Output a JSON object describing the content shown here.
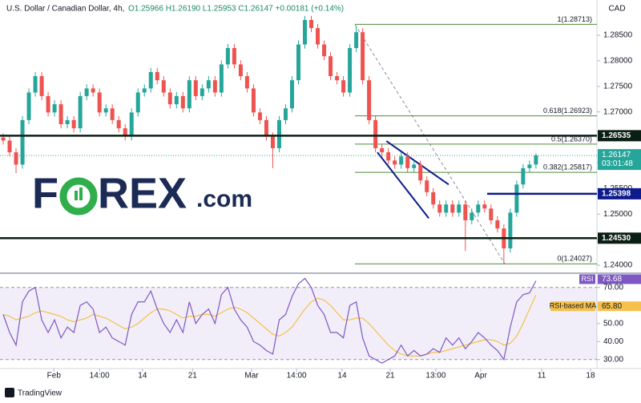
{
  "header": {
    "symbol": "U.S. Dollar / Canadian Dollar, 4h,",
    "ohlc": "O1.25966 H1.26190 L1.25953 C1.26147 +0.00181 (+0.14%)",
    "currency": "CAD"
  },
  "watermark": {
    "f": "F",
    "rex": "REX",
    "com": ".com"
  },
  "footer": "TradingView",
  "chart_data": [
    {
      "type": "candlestick",
      "up_color": "#26a69a",
      "down_color": "#ef5350",
      "open": [
        1.265,
        1.2644,
        1.2621,
        1.2597,
        1.2684,
        1.2738,
        1.277,
        1.2731,
        1.2699,
        1.2715,
        1.2676,
        1.2684,
        1.2668,
        1.2731,
        1.2746,
        1.2738,
        1.2699,
        1.2707,
        1.2684,
        1.2668,
        1.2652,
        1.2699,
        1.2738,
        1.2746,
        1.2778,
        1.2762,
        1.2738,
        1.2715,
        1.2731,
        1.2707,
        1.2762,
        1.2731,
        1.2746,
        1.2762,
        1.2738,
        1.2793,
        1.2825,
        1.2793,
        1.277,
        1.2746,
        1.2699,
        1.2684,
        1.2652,
        1.2629,
        1.2684,
        1.2707,
        1.2762,
        1.2832,
        1.288,
        1.2864,
        1.2832,
        1.2809,
        1.277,
        1.2762,
        1.2738,
        1.2825,
        1.2856,
        1.2762,
        1.2684,
        1.2629,
        1.2621,
        1.2605,
        1.2597,
        1.2613,
        1.259,
        1.2597,
        1.2566,
        1.2543,
        1.2519,
        1.2503,
        1.2519,
        1.2503,
        1.2519,
        1.2488,
        1.2503,
        1.2519,
        1.2511,
        1.2488,
        1.2472,
        1.2433,
        1.2503,
        1.2558,
        1.259,
        1.2597
      ],
      "high": [
        1.2658,
        1.2652,
        1.2629,
        1.2692,
        1.2746,
        1.2778,
        1.2778,
        1.2739,
        1.2723,
        1.2723,
        1.2692,
        1.2692,
        1.2739,
        1.2754,
        1.2754,
        1.2746,
        1.2715,
        1.2715,
        1.2692,
        1.2676,
        1.2707,
        1.2746,
        1.2754,
        1.2786,
        1.2786,
        1.277,
        1.2746,
        1.2739,
        1.2739,
        1.277,
        1.277,
        1.2754,
        1.277,
        1.277,
        1.2801,
        1.2833,
        1.2833,
        1.2801,
        1.2778,
        1.2754,
        1.2707,
        1.2692,
        1.266,
        1.2692,
        1.2715,
        1.277,
        1.284,
        1.2888,
        1.2888,
        1.2872,
        1.284,
        1.2817,
        1.2778,
        1.277,
        1.2833,
        1.2868,
        1.2864,
        1.277,
        1.2692,
        1.2637,
        1.2629,
        1.2613,
        1.2621,
        1.2621,
        1.2605,
        1.2605,
        1.2574,
        1.2551,
        1.2527,
        1.2527,
        1.2527,
        1.2527,
        1.2527,
        1.2511,
        1.2527,
        1.2527,
        1.2519,
        1.2496,
        1.248,
        1.2511,
        1.2566,
        1.2598,
        1.2605,
        1.2619
      ],
      "low": [
        1.2636,
        1.2613,
        1.258,
        1.2589,
        1.2676,
        1.273,
        1.2723,
        1.2691,
        1.2691,
        1.2668,
        1.2668,
        1.266,
        1.266,
        1.2723,
        1.273,
        1.2691,
        1.2691,
        1.2676,
        1.266,
        1.2644,
        1.2644,
        1.2691,
        1.273,
        1.2738,
        1.2754,
        1.273,
        1.2707,
        1.2707,
        1.2699,
        1.2699,
        1.2723,
        1.2723,
        1.2738,
        1.273,
        1.273,
        1.2785,
        1.2785,
        1.2762,
        1.2738,
        1.2691,
        1.2676,
        1.2644,
        1.259,
        1.2621,
        1.2676,
        1.2699,
        1.2754,
        1.2824,
        1.2856,
        1.2824,
        1.2801,
        1.2762,
        1.2754,
        1.273,
        1.273,
        1.2817,
        1.2754,
        1.2676,
        1.2621,
        1.2613,
        1.2597,
        1.2589,
        1.2589,
        1.2582,
        1.2582,
        1.2558,
        1.2535,
        1.2511,
        1.2495,
        1.2495,
        1.2495,
        1.2495,
        1.2428,
        1.248,
        1.2495,
        1.2503,
        1.248,
        1.2464,
        1.2402,
        1.2425,
        1.2495,
        1.255,
        1.2582,
        1.2589
      ],
      "close": [
        1.2644,
        1.2621,
        1.2597,
        1.2684,
        1.2738,
        1.277,
        1.2731,
        1.2699,
        1.2715,
        1.2676,
        1.2684,
        1.2668,
        1.2731,
        1.2746,
        1.2738,
        1.2699,
        1.2707,
        1.2684,
        1.2668,
        1.2652,
        1.2699,
        1.2738,
        1.2746,
        1.2778,
        1.2762,
        1.2738,
        1.2715,
        1.2731,
        1.2707,
        1.2762,
        1.2731,
        1.2746,
        1.2762,
        1.2738,
        1.2793,
        1.2825,
        1.2793,
        1.277,
        1.2746,
        1.2699,
        1.2684,
        1.2652,
        1.2629,
        1.2684,
        1.2707,
        1.2762,
        1.2832,
        1.288,
        1.2864,
        1.2832,
        1.2809,
        1.277,
        1.2762,
        1.2738,
        1.2825,
        1.2856,
        1.2762,
        1.2684,
        1.2629,
        1.2621,
        1.2605,
        1.2597,
        1.2613,
        1.259,
        1.2597,
        1.2566,
        1.2543,
        1.2519,
        1.2503,
        1.2519,
        1.2503,
        1.2519,
        1.2488,
        1.2503,
        1.2519,
        1.2511,
        1.2488,
        1.2472,
        1.2433,
        1.2503,
        1.2558,
        1.259,
        1.2597,
        1.2615
      ],
      "xlim": [
        -0.5,
        92.5
      ],
      "xticks": [
        {
          "value": 7.9,
          "label": "Feb"
        },
        {
          "value": 15,
          "label": "14:00"
        },
        {
          "value": 21.7,
          "label": "14"
        },
        {
          "value": 29.5,
          "label": "21"
        },
        {
          "value": 38.7,
          "label": "Mar"
        },
        {
          "value": 45.7,
          "label": "14:00"
        },
        {
          "value": 52.8,
          "label": "14"
        },
        {
          "value": 60.3,
          "label": "21"
        },
        {
          "value": 67.4,
          "label": "13:00"
        },
        {
          "value": 74.4,
          "label": "Apr"
        },
        {
          "value": 83.9,
          "label": "11"
        },
        {
          "value": 91.5,
          "label": "18"
        }
      ],
      "ylim": [
        1.2386,
        1.2919
      ],
      "yticks": [
        {
          "value": 1.24,
          "label": "1.24000"
        },
        {
          "value": 1.245,
          "label": "1.24500"
        },
        {
          "value": 1.25,
          "label": "1.25000"
        },
        {
          "value": 1.255,
          "label": "1.25500"
        },
        {
          "value": 1.26,
          "label": "1.26000"
        },
        {
          "value": 1.265,
          "label": "1.26500"
        },
        {
          "value": 1.27,
          "label": "1.27000"
        },
        {
          "value": 1.275,
          "label": "1.27500"
        },
        {
          "value": 1.28,
          "label": "1.28000"
        },
        {
          "value": 1.285,
          "label": "1.28500"
        }
      ],
      "levels": [
        {
          "value": 1.26535,
          "label": "1.26535",
          "color": "#0b1f14",
          "start": -0.5
        },
        {
          "value": 1.25398,
          "label": "1.25398",
          "color": "#0d1b8c",
          "start": 75.4
        },
        {
          "value": 1.2453,
          "label": "1.24530",
          "color": "#0b1f14",
          "start": -0.5
        }
      ],
      "fib": {
        "color": "#4e8a3a",
        "start": 54.8,
        "levels": [
          {
            "value": 1.28713,
            "label": "1(1.28713)"
          },
          {
            "value": 1.26923,
            "label": "0.618(1.26923)"
          },
          {
            "value": 1.2637,
            "label": "0.5(1.26370)"
          },
          {
            "value": 1.25817,
            "label": "0.382(1.25817)"
          },
          {
            "value": 1.24027,
            "label": "0(1.24027)"
          }
        ]
      },
      "trendlines": [
        {
          "color": "#0d1b8c",
          "dashed": false,
          "points": [
            [
              59.7,
              1.2643
            ],
            [
              69.4,
              1.2558
            ]
          ]
        },
        {
          "color": "#0d1b8c",
          "dashed": false,
          "points": [
            [
              58.3,
              1.2621
            ],
            [
              66.3,
              1.2492
            ]
          ]
        },
        {
          "color": "#8a8f99",
          "dashed": true,
          "points": [
            [
              54.8,
              1.2871
            ],
            [
              78.2,
              1.2402
            ]
          ]
        }
      ],
      "last_price": {
        "value": 1.26147,
        "label": "1.26147",
        "color": "#26a69a"
      },
      "countdown": "03:01:48"
    },
    {
      "type": "line",
      "ylim": [
        25,
        77
      ],
      "yticks": [
        {
          "value": 70,
          "label": "70.00"
        },
        {
          "value": 60,
          "label": "60.00"
        },
        {
          "value": 50,
          "label": "50.00"
        },
        {
          "value": 40,
          "label": "40.00"
        },
        {
          "value": 30,
          "label": "30.00"
        }
      ],
      "band": [
        30,
        70
      ],
      "series": [
        {
          "name": "RSI",
          "color": "#7e57c2",
          "last_label": "73.68",
          "values": [
            55,
            45,
            38,
            62,
            68,
            70,
            52,
            45,
            52,
            42,
            48,
            45,
            60,
            62,
            58,
            45,
            48,
            42,
            40,
            38,
            55,
            62,
            62,
            68,
            58,
            50,
            45,
            52,
            45,
            62,
            50,
            55,
            58,
            50,
            66,
            70,
            58,
            52,
            48,
            40,
            38,
            35,
            33,
            52,
            55,
            65,
            72,
            75,
            70,
            60,
            55,
            45,
            45,
            42,
            60,
            62,
            42,
            32,
            30,
            28,
            30,
            32,
            38,
            32,
            35,
            32,
            33,
            36,
            34,
            42,
            38,
            42,
            36,
            40,
            45,
            42,
            38,
            35,
            30,
            48,
            62,
            66,
            67,
            73.68
          ]
        },
        {
          "name": "RSI-based MA",
          "color": "#f5c04b",
          "last_label": "65.80",
          "values": [
            55,
            54,
            52,
            53,
            54,
            56,
            57,
            56,
            55,
            54,
            52,
            51,
            52,
            53,
            55,
            54,
            53,
            51,
            49,
            47,
            48,
            50,
            53,
            56,
            58,
            58,
            57,
            55,
            53,
            54,
            54,
            55,
            55,
            54,
            56,
            58,
            59,
            58,
            56,
            53,
            50,
            47,
            44,
            43,
            45,
            48,
            53,
            58,
            62,
            64,
            63,
            60,
            56,
            52,
            52,
            53,
            53,
            50,
            46,
            42,
            38,
            35,
            33,
            32,
            32,
            32,
            33,
            34,
            34,
            35,
            36,
            37,
            38,
            39,
            40,
            41,
            41,
            40,
            38,
            39,
            43,
            50,
            58,
            65.8
          ]
        }
      ]
    }
  ]
}
